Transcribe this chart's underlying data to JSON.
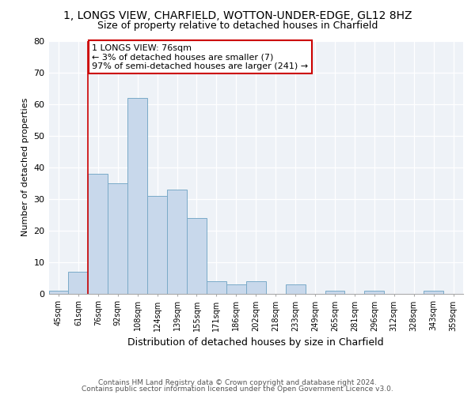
{
  "title1": "1, LONGS VIEW, CHARFIELD, WOTTON-UNDER-EDGE, GL12 8HZ",
  "title2": "Size of property relative to detached houses in Charfield",
  "xlabel": "Distribution of detached houses by size in Charfield",
  "ylabel": "Number of detached properties",
  "bin_labels": [
    "45sqm",
    "61sqm",
    "76sqm",
    "92sqm",
    "108sqm",
    "124sqm",
    "139sqm",
    "155sqm",
    "171sqm",
    "186sqm",
    "202sqm",
    "218sqm",
    "233sqm",
    "249sqm",
    "265sqm",
    "281sqm",
    "296sqm",
    "312sqm",
    "328sqm",
    "343sqm",
    "359sqm"
  ],
  "bar_values": [
    1,
    7,
    38,
    35,
    62,
    31,
    33,
    24,
    4,
    3,
    4,
    0,
    3,
    0,
    1,
    0,
    1,
    0,
    0,
    1,
    0
  ],
  "bar_color": "#c8d8eb",
  "bar_edge_color": "#7aaac8",
  "highlight_line_index": 2,
  "highlight_color": "#cc0000",
  "annotation_text": "1 LONGS VIEW: 76sqm\n← 3% of detached houses are smaller (7)\n97% of semi-detached houses are larger (241) →",
  "annotation_box_color": "#ffffff",
  "annotation_box_edge": "#cc0000",
  "ylim": [
    0,
    80
  ],
  "yticks": [
    0,
    10,
    20,
    30,
    40,
    50,
    60,
    70,
    80
  ],
  "footer1": "Contains HM Land Registry data © Crown copyright and database right 2024.",
  "footer2": "Contains public sector information licensed under the Open Government Licence v3.0.",
  "bg_color": "#eef2f7"
}
